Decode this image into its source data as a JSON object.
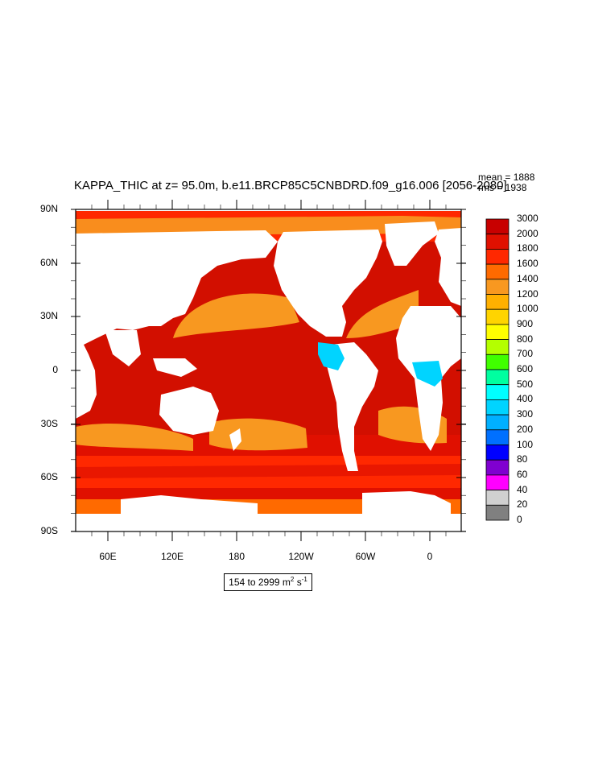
{
  "title": "KAPPA_THIC at z=  95.0m, b.e11.BRCP85C5CNBDRD.f09_g16.006 [2056-2080]",
  "stats": {
    "mean": "mean = 1888",
    "rms": "rms = 1938"
  },
  "y_axis": {
    "ticks": [
      "90N",
      "60N",
      "30N",
      "0",
      "30S",
      "60S",
      "90S"
    ]
  },
  "x_axis": {
    "ticks": [
      "60E",
      "120E",
      "180",
      "120W",
      "60W",
      "0"
    ]
  },
  "legend": {
    "levels": [
      "3000",
      "2000",
      "1800",
      "1600",
      "1400",
      "1200",
      "1000",
      "900",
      "800",
      "700",
      "600",
      "500",
      "400",
      "300",
      "200",
      "100",
      "80",
      "60",
      "40",
      "20",
      "0"
    ],
    "colors": [
      "#c80000",
      "#e01000",
      "#ff2800",
      "#ff6a00",
      "#f89820",
      "#ffb000",
      "#ffd400",
      "#ffff00",
      "#b4ff00",
      "#40ff00",
      "#00ffa0",
      "#00ffff",
      "#00d4ff",
      "#00b0ff",
      "#0070ff",
      "#0000ff",
      "#8000d0",
      "#ff00ff",
      "#d0d0d0",
      "#808080"
    ]
  },
  "range": {
    "prefix": "154 to 2999 m",
    "sup1": "2",
    "mid": " s",
    "sup2": "-1"
  },
  "colors": {
    "deep_ocean": "#d20f00",
    "land": "#ffffff",
    "band_orange": "#f89820",
    "band_red": "#ff2800"
  }
}
